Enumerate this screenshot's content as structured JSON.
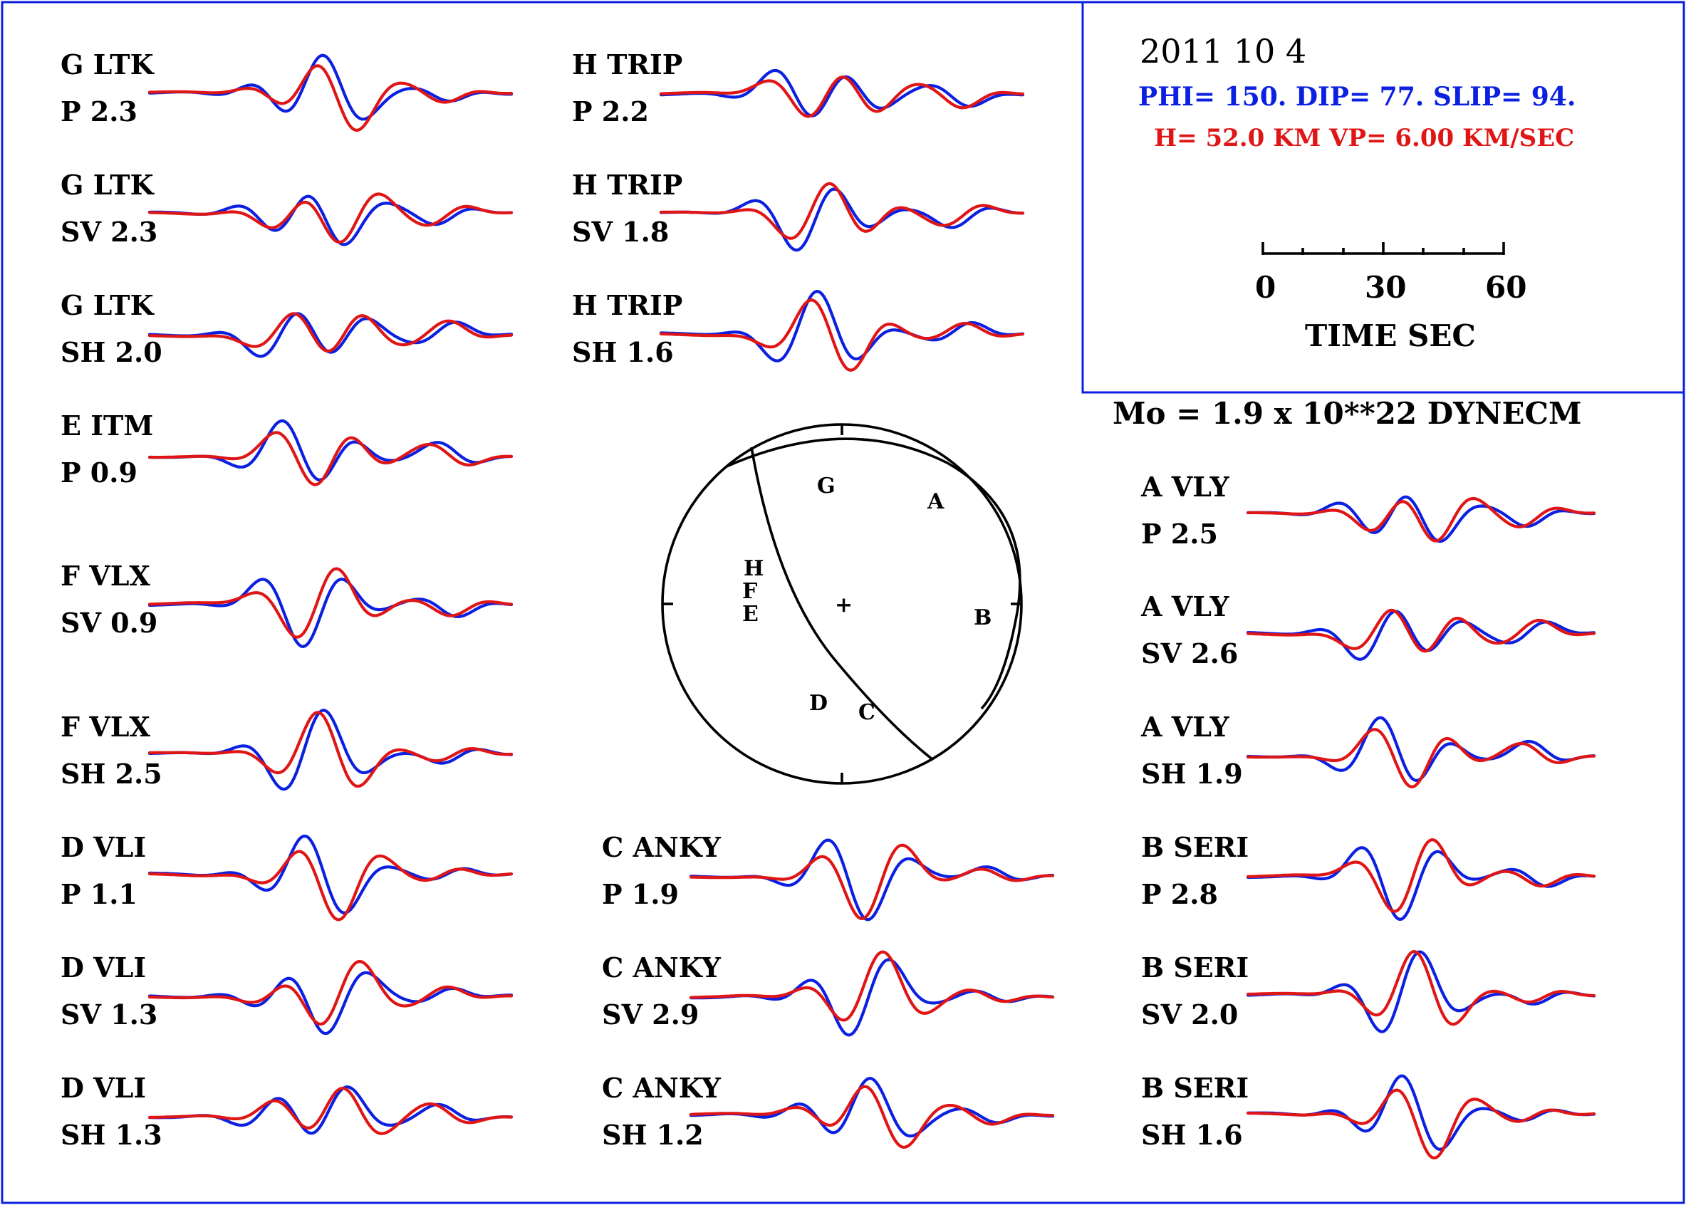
{
  "colors": {
    "observed": "#0b20e0",
    "synthetic": "#e01616",
    "frame": "#0b20e0",
    "ink": "#000000"
  },
  "header": {
    "date": "2011 10  4",
    "mechanism": "PHI= 150. DIP= 77. SLIP=  94.",
    "depth": "H= 52.0 KM  VP= 6.00 KM/SEC"
  },
  "scale": {
    "ticks": [
      "0",
      "30",
      "60"
    ],
    "label": "TIME   SEC",
    "range": [
      0,
      60
    ]
  },
  "moment": "Mo =   1.9 x 10**22 DYNECM",
  "sphere": {
    "stations": [
      "G",
      "A",
      "H",
      "F",
      "E",
      "B",
      "D",
      "C"
    ],
    "center_mark": "+"
  },
  "traces": [
    {
      "code": "G LTK",
      "comp": "P   2.3"
    },
    {
      "code": "G LTK",
      "comp": "SV  2.3"
    },
    {
      "code": "G LTK",
      "comp": "SH  2.0"
    },
    {
      "code": "E ITM",
      "comp": "P   0.9"
    },
    {
      "code": "F VLX",
      "comp": "SV  0.9"
    },
    {
      "code": "F VLX",
      "comp": "SH  2.5"
    },
    {
      "code": "D VLI",
      "comp": "P   1.1"
    },
    {
      "code": "D VLI",
      "comp": "SV  1.3"
    },
    {
      "code": "D VLI",
      "comp": "SH  1.3"
    },
    {
      "code": "H TRIP",
      "comp": "P   2.2"
    },
    {
      "code": "H TRIP",
      "comp": "SV  1.8"
    },
    {
      "code": "H TRIP",
      "comp": "SH  1.6"
    },
    {
      "code": "C ANKY",
      "comp": "P   1.9"
    },
    {
      "code": "C ANKY",
      "comp": "SV  2.9"
    },
    {
      "code": "C ANKY",
      "comp": "SH  1.2"
    },
    {
      "code": "A VLY",
      "comp": "P   2.5"
    },
    {
      "code": "A VLY",
      "comp": "SV  2.6"
    },
    {
      "code": "A VLY",
      "comp": "SH  1.9"
    },
    {
      "code": "B SERI",
      "comp": "P   2.8"
    },
    {
      "code": "B SERI",
      "comp": "SV  2.0"
    },
    {
      "code": "B SERI",
      "comp": "SH  1.6"
    }
  ]
}
